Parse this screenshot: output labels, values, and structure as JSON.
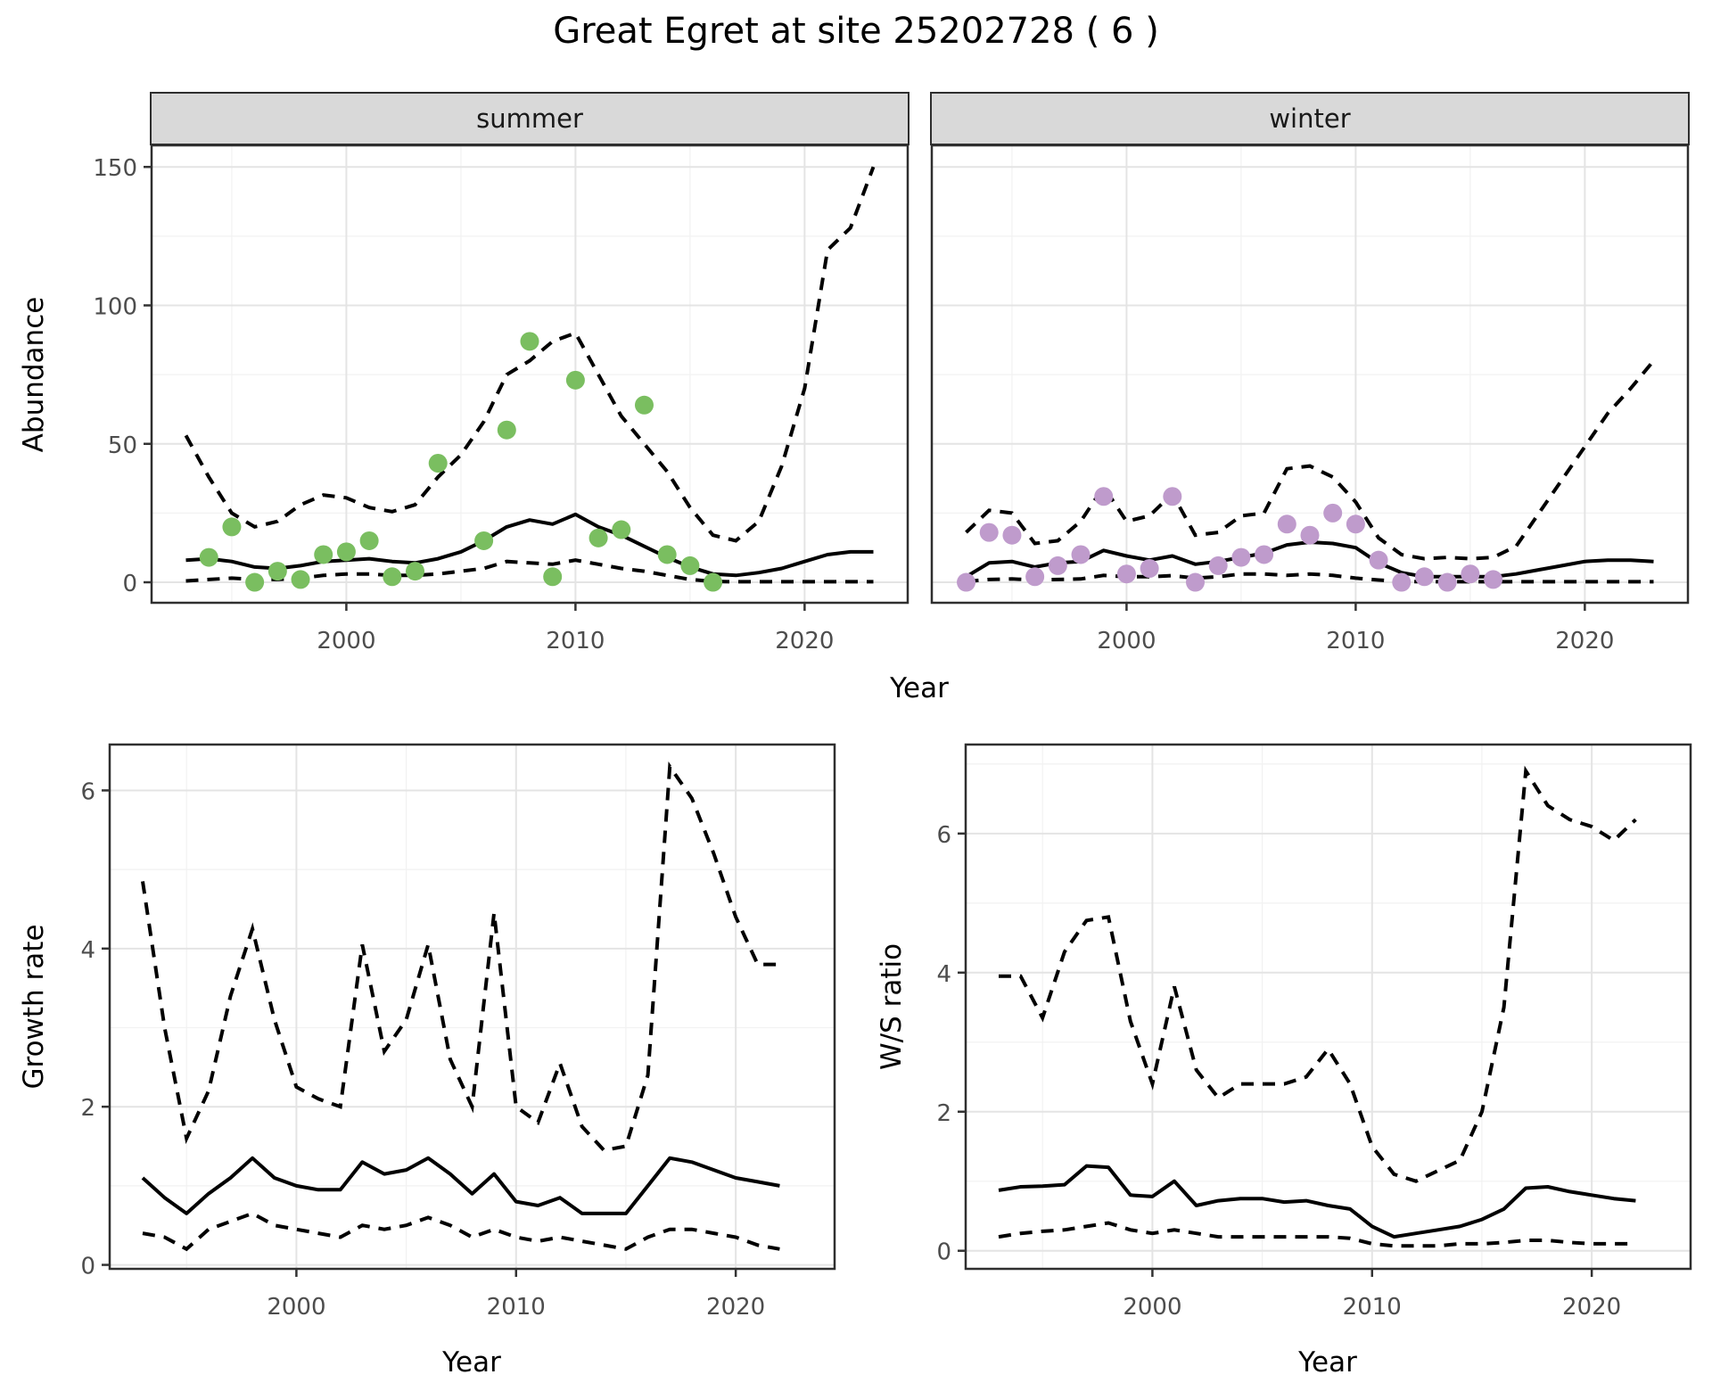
{
  "title": "Great Egret at site 25202728 ( 6 )",
  "colors": {
    "summer_point": "#7ABE60",
    "winter_point": "#BF9BCC",
    "line": "#000000",
    "strip_bg": "#D9D9D9",
    "grid_major": "#E4E4E4",
    "grid_minor": "#F2F2F2",
    "panel_border": "#2F2F2F",
    "tick_text": "#4D4D4D"
  },
  "chart_data": {
    "type": "line",
    "title": "Great Egret at site 25202728 ( 6 )",
    "top_row": {
      "ylabel": "Abundance",
      "xlabel": "Year",
      "x_domain": [
        1991.5,
        2024.5
      ],
      "y_domain": [
        -7.4,
        157.8
      ],
      "x_ticks": [
        2000,
        2010,
        2020
      ],
      "x_minor_ticks": [
        1995,
        2005,
        2015
      ],
      "y_ticks": [
        0,
        50,
        100,
        150
      ],
      "y_minor_ticks": [
        25,
        75,
        125
      ],
      "model_years": [
        1993,
        1994,
        1995,
        1996,
        1997,
        1998,
        1999,
        2000,
        2001,
        2002,
        2003,
        2004,
        2005,
        2006,
        2007,
        2008,
        2009,
        2010,
        2011,
        2012,
        2013,
        2014,
        2015,
        2016,
        2017,
        2018,
        2019,
        2020,
        2021,
        2022,
        2023
      ],
      "facets": [
        {
          "label": "summer",
          "point_color": "#7ABE60",
          "observed": {
            "years": [
              1994,
              1995,
              1996,
              1997,
              1998,
              1999,
              2000,
              2001,
              2002,
              2003,
              2004,
              2006,
              2007,
              2008,
              2009,
              2010,
              2011,
              2012,
              2013,
              2014,
              2015,
              2016
            ],
            "values": [
              9,
              20,
              0,
              4,
              1,
              10,
              11,
              15,
              2,
              4,
              43,
              15,
              55,
              87,
              2,
              73,
              16,
              19,
              64,
              10,
              6,
              0
            ]
          },
          "mean": [
            8,
            8.5,
            7.5,
            5.5,
            5,
            6,
            7.5,
            8,
            8.5,
            7.5,
            7,
            8.5,
            11,
            15,
            20,
            22.5,
            21,
            24.5,
            20,
            17,
            13,
            9,
            5.5,
            3,
            2.5,
            3.5,
            5,
            7.5,
            10,
            11,
            11
          ],
          "upper_ci": [
            53,
            38,
            25,
            20,
            22,
            28,
            31.5,
            30.5,
            27,
            25.5,
            28,
            38,
            46,
            58,
            75,
            80,
            87,
            90,
            75,
            60,
            50,
            40,
            27,
            17,
            15,
            22,
            42,
            70,
            120,
            128,
            150
          ],
          "lower_ci": [
            0.5,
            1,
            1.5,
            1,
            1,
            1.5,
            2.5,
            3,
            3,
            2.5,
            2.5,
            3,
            4,
            5,
            7.5,
            7,
            6.5,
            8,
            6.5,
            5,
            4,
            2.5,
            1,
            0.3,
            0.2,
            0.2,
            0.2,
            0.2,
            0.2,
            0.2,
            0.2
          ]
        },
        {
          "label": "winter",
          "point_color": "#BF9BCC",
          "observed": {
            "years": [
              1993,
              1994,
              1995,
              1996,
              1997,
              1998,
              1999,
              2000,
              2001,
              2002,
              2003,
              2004,
              2005,
              2006,
              2007,
              2008,
              2009,
              2010,
              2011,
              2012,
              2013,
              2014,
              2015,
              2016
            ],
            "values": [
              0,
              18,
              17,
              2,
              6,
              10,
              31,
              3,
              5,
              31,
              0,
              6,
              9,
              10,
              21,
              17,
              25,
              21,
              8,
              0,
              2,
              0,
              3,
              1
            ]
          },
          "mean": [
            2,
            7,
            7.5,
            5.5,
            7,
            7.5,
            11.5,
            9.5,
            8,
            9.5,
            6.5,
            7.5,
            9,
            10.5,
            13.5,
            14.5,
            14,
            12.5,
            7,
            3.5,
            2,
            2,
            2,
            2,
            3,
            4.5,
            6,
            7.5,
            8,
            8,
            7.5
          ],
          "upper_ci": [
            18,
            26,
            25,
            14,
            15,
            22,
            34.5,
            22,
            24,
            32,
            17,
            18,
            24,
            25,
            41,
            42,
            38,
            29,
            16,
            10,
            8.5,
            9,
            8.5,
            9,
            13,
            25,
            37,
            49,
            61,
            70,
            80
          ],
          "lower_ci": [
            0.3,
            1,
            1.2,
            0.8,
            1,
            1.2,
            2.5,
            2,
            2,
            2.4,
            1.5,
            2,
            3,
            3,
            2.5,
            3,
            2.5,
            1.5,
            0.8,
            0.3,
            0.2,
            0.2,
            0.2,
            0.2,
            0.2,
            0.2,
            0.2,
            0.2,
            0.2,
            0.2,
            0.2
          ]
        }
      ]
    },
    "bottom_row": [
      {
        "id": "growth-rate",
        "ylabel": "Growth rate",
        "xlabel": "Year",
        "x_domain": [
          1991.5,
          2024.5
        ],
        "y_domain": [
          -0.05,
          6.58
        ],
        "x_ticks": [
          2000,
          2010,
          2020
        ],
        "x_minor_ticks": [
          1995,
          2005,
          2015
        ],
        "y_ticks": [
          0,
          2,
          4,
          6
        ],
        "y_minor_ticks": [
          1,
          3,
          5
        ],
        "years": [
          1993,
          1994,
          1995,
          1996,
          1997,
          1998,
          1999,
          2000,
          2001,
          2002,
          2003,
          2004,
          2005,
          2006,
          2007,
          2008,
          2009,
          2010,
          2011,
          2012,
          2013,
          2014,
          2015,
          2016,
          2017,
          2018,
          2019,
          2020,
          2021,
          2022
        ],
        "mean": [
          1.1,
          0.85,
          0.65,
          0.9,
          1.1,
          1.35,
          1.1,
          1.0,
          0.95,
          0.95,
          1.3,
          1.15,
          1.2,
          1.35,
          1.15,
          0.9,
          1.15,
          0.8,
          0.75,
          0.85,
          0.65,
          0.65,
          0.65,
          1.0,
          1.35,
          1.3,
          1.2,
          1.1,
          1.05,
          1.0
        ],
        "upper_ci": [
          4.85,
          3.0,
          1.6,
          2.2,
          3.4,
          4.25,
          3.1,
          2.25,
          2.1,
          2.0,
          4.05,
          2.7,
          3.1,
          4.05,
          2.6,
          2.0,
          4.45,
          2.0,
          1.8,
          2.55,
          1.75,
          1.45,
          1.5,
          2.4,
          6.3,
          5.9,
          5.2,
          4.4,
          3.8,
          3.8
        ],
        "lower_ci": [
          0.4,
          0.35,
          0.2,
          0.45,
          0.55,
          0.65,
          0.5,
          0.45,
          0.4,
          0.35,
          0.5,
          0.45,
          0.5,
          0.6,
          0.5,
          0.35,
          0.45,
          0.35,
          0.3,
          0.35,
          0.3,
          0.25,
          0.2,
          0.35,
          0.45,
          0.45,
          0.4,
          0.35,
          0.25,
          0.2
        ]
      },
      {
        "id": "ws-ratio",
        "ylabel": "W/S ratio",
        "xlabel": "Year",
        "x_domain": [
          1991.5,
          2024.5
        ],
        "y_domain": [
          -0.26,
          7.28
        ],
        "x_ticks": [
          2000,
          2010,
          2020
        ],
        "x_minor_ticks": [
          1995,
          2005,
          2015
        ],
        "y_ticks": [
          0,
          2,
          4,
          6
        ],
        "y_minor_ticks": [
          1,
          3,
          5,
          7
        ],
        "years": [
          1993,
          1994,
          1995,
          1996,
          1997,
          1998,
          1999,
          2000,
          2001,
          2002,
          2003,
          2004,
          2005,
          2006,
          2007,
          2008,
          2009,
          2010,
          2011,
          2012,
          2013,
          2014,
          2015,
          2016,
          2017,
          2018,
          2019,
          2020,
          2021,
          2022
        ],
        "mean": [
          0.87,
          0.92,
          0.93,
          0.95,
          1.22,
          1.2,
          0.8,
          0.78,
          1.0,
          0.65,
          0.72,
          0.75,
          0.75,
          0.7,
          0.72,
          0.65,
          0.6,
          0.35,
          0.2,
          0.25,
          0.3,
          0.35,
          0.45,
          0.6,
          0.9,
          0.92,
          0.85,
          0.8,
          0.75,
          0.72
        ],
        "upper_ci": [
          3.95,
          3.95,
          3.35,
          4.3,
          4.75,
          4.8,
          3.3,
          2.4,
          3.8,
          2.6,
          2.2,
          2.4,
          2.4,
          2.4,
          2.5,
          2.9,
          2.4,
          1.5,
          1.1,
          1.0,
          1.15,
          1.3,
          2.0,
          3.5,
          6.9,
          6.4,
          6.2,
          6.1,
          5.9,
          6.2
        ],
        "lower_ci": [
          0.2,
          0.25,
          0.28,
          0.3,
          0.35,
          0.4,
          0.3,
          0.25,
          0.3,
          0.25,
          0.2,
          0.2,
          0.2,
          0.2,
          0.2,
          0.2,
          0.18,
          0.1,
          0.07,
          0.07,
          0.07,
          0.1,
          0.1,
          0.12,
          0.15,
          0.15,
          0.12,
          0.1,
          0.1,
          0.1
        ]
      }
    ]
  }
}
